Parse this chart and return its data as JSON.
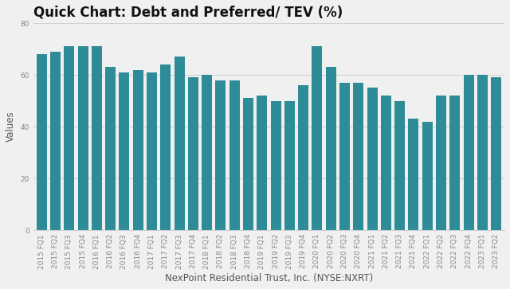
{
  "title": "Quick Chart: Debt and Preferred/ TEV (%)",
  "xlabel": "NexPoint Residential Trust, Inc. (NYSE:NXRT)",
  "ylabel": "Values",
  "bar_color": "#2e8b98",
  "background_color": "#f0f0f0",
  "plot_bg_color": "#f0f0f0",
  "ylim": [
    0,
    80
  ],
  "yticks": [
    0,
    20,
    40,
    60,
    80
  ],
  "categories": [
    "2015 FQ1",
    "2015 FQ2",
    "2015 FQ3",
    "2015 FQ4",
    "2016 FQ1",
    "2016 FQ2",
    "2016 FQ3",
    "2016 FQ4",
    "2017 FQ1",
    "2017 FQ2",
    "2017 FQ3",
    "2017 FQ4",
    "2018 FQ1",
    "2018 FQ2",
    "2018 FQ3",
    "2018 FQ4",
    "2019 FQ1",
    "2019 FQ2",
    "2019 FQ3",
    "2019 FQ4",
    "2020 FQ1",
    "2020 FQ2",
    "2020 FQ3",
    "2020 FQ4",
    "2021 FQ1",
    "2021 FQ2",
    "2021 FQ3",
    "2021 FQ4",
    "2022 FQ1",
    "2022 FQ2",
    "2022 FQ3",
    "2022 FQ4",
    "2023 FQ1",
    "2023 FQ2"
  ],
  "values": [
    68,
    69,
    71,
    71,
    71,
    63,
    61,
    62,
    61,
    64,
    67,
    59,
    60,
    58,
    58,
    51,
    52,
    50,
    50,
    56,
    71,
    63,
    57,
    57,
    55,
    52,
    50,
    43,
    42,
    52,
    52,
    60,
    60,
    59
  ],
  "grid_color": "#d0d0d0",
  "title_fontsize": 12,
  "axis_label_fontsize": 8.5,
  "tick_fontsize": 6.5,
  "tick_color": "#888888",
  "label_color": "#555555"
}
